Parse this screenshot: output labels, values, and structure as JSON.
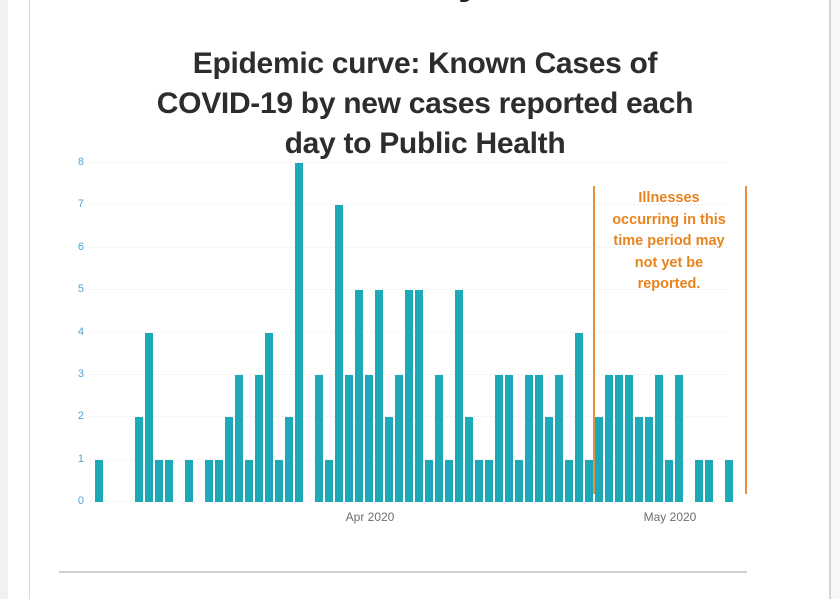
{
  "page": {
    "top_fragment_glyph": "y"
  },
  "chart_data": {
    "type": "bar",
    "title": "Epidemic curve: Known Cases of COVID-19 by new cases reported each day to Public Health",
    "title_lines": [
      "Epidemic curve: Known Cases of",
      "COVID-19 by new cases reported each",
      "day to Public Health"
    ],
    "xlabel": "",
    "ylabel": "",
    "ylim": [
      0,
      8
    ],
    "yticks": [
      0,
      1,
      2,
      3,
      4,
      5,
      6,
      7,
      8
    ],
    "grid": "horizontal-dotted",
    "legend": "none",
    "bar_color": "#1ea9b8",
    "axis_tick_color": "#4fa6d5",
    "x_tick_color": "#6e6e6e",
    "x_ticks": [
      {
        "label": "Apr 2020",
        "day_index": 28
      },
      {
        "label": "May 2020",
        "day_index": 58
      }
    ],
    "values": [
      1,
      0,
      0,
      0,
      2,
      4,
      1,
      1,
      0,
      1,
      0,
      1,
      1,
      2,
      3,
      1,
      3,
      4,
      1,
      2,
      8,
      0,
      3,
      1,
      7,
      3,
      5,
      3,
      5,
      2,
      3,
      5,
      5,
      1,
      3,
      1,
      5,
      2,
      1,
      1,
      3,
      3,
      1,
      3,
      3,
      2,
      3,
      1,
      4,
      1,
      2,
      3,
      3,
      3,
      2,
      2,
      3,
      1,
      3,
      0,
      1,
      1,
      0,
      1
    ],
    "annotation": {
      "lines": [
        "Illnesses",
        "occurring in this",
        "time period may",
        "not yet be",
        "reported."
      ],
      "text": "Illnesses occurring in this time period may not yet be reported.",
      "text_color": "#e8831d",
      "line_color": "#e79040",
      "start_day_index": 49.8,
      "end_day_index": 65
    }
  }
}
